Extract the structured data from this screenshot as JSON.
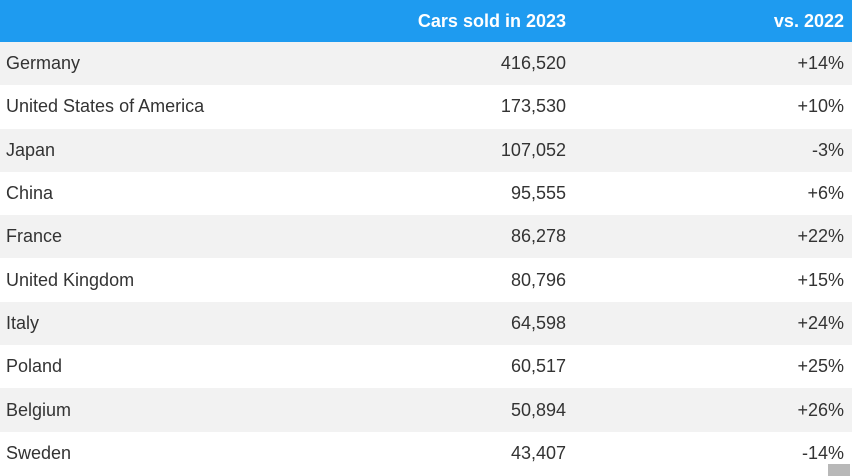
{
  "chart_data": {
    "type": "table",
    "columns": [
      "",
      "Cars sold in 2023",
      "vs. 2022"
    ],
    "rows": [
      {
        "country": "Germany",
        "sold": "416,520",
        "change": "+14%"
      },
      {
        "country": "United States of America",
        "sold": "173,530",
        "change": "+10%"
      },
      {
        "country": "Japan",
        "sold": "107,052",
        "change": "-3%"
      },
      {
        "country": "China",
        "sold": "95,555",
        "change": "+6%"
      },
      {
        "country": "France",
        "sold": "86,278",
        "change": "+22%"
      },
      {
        "country": "United Kingdom",
        "sold": "80,796",
        "change": "+15%"
      },
      {
        "country": "Italy",
        "sold": "64,598",
        "change": "+24%"
      },
      {
        "country": "Poland",
        "sold": "60,517",
        "change": "+25%"
      },
      {
        "country": "Belgium",
        "sold": "50,894",
        "change": "+26%"
      },
      {
        "country": "Sweden",
        "sold": "43,407",
        "change": "-14%"
      }
    ]
  },
  "colors": {
    "header_bg": "#1e9bf0",
    "header_text": "#ffffff",
    "row_odd": "#f2f2f2",
    "row_even": "#ffffff"
  }
}
